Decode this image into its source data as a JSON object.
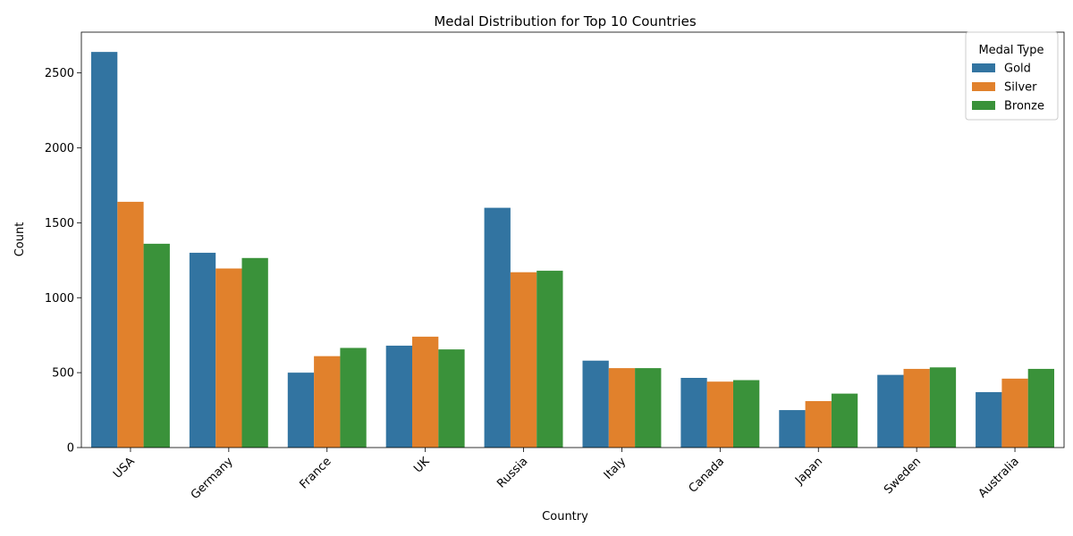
{
  "chart_data": {
    "type": "bar",
    "title": "Medal Distribution for Top 10 Countries",
    "xlabel": "Country",
    "ylabel": "Count",
    "categories": [
      "USA",
      "Germany",
      "France",
      "UK",
      "Russia",
      "Italy",
      "Canada",
      "Japan",
      "Sweden",
      "Australia"
    ],
    "series": [
      {
        "name": "Gold",
        "color": "#3274a1",
        "values": [
          2640,
          1300,
          500,
          680,
          1600,
          580,
          465,
          250,
          485,
          370
        ]
      },
      {
        "name": "Silver",
        "color": "#e1812c",
        "values": [
          1640,
          1195,
          610,
          740,
          1170,
          530,
          440,
          310,
          525,
          460
        ]
      },
      {
        "name": "Bronze",
        "color": "#3a923a",
        "values": [
          1360,
          1265,
          665,
          655,
          1180,
          530,
          450,
          360,
          535,
          525
        ]
      }
    ],
    "ylim": [
      0,
      2772
    ],
    "yticks": [
      0,
      500,
      1000,
      1500,
      2000,
      2500
    ],
    "legend": {
      "title": "Medal Type",
      "placement": "top-right"
    },
    "grid": false
  }
}
